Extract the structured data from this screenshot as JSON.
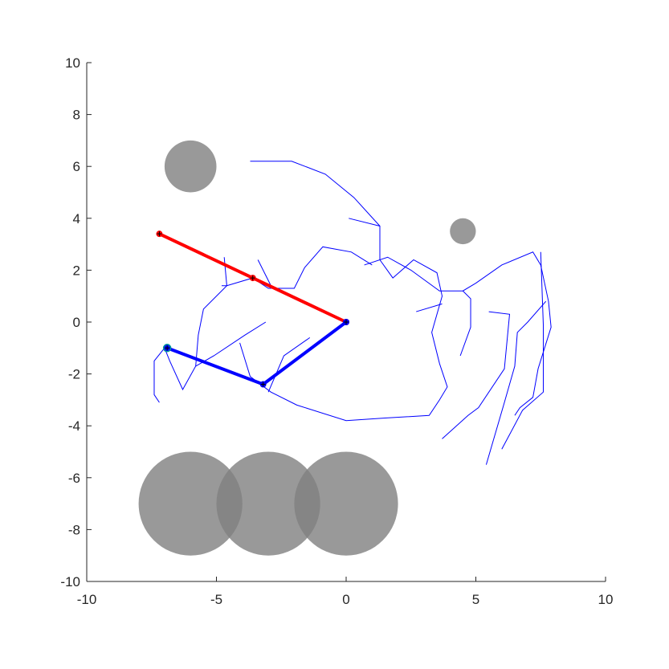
{
  "chart_data": {
    "type": "line",
    "title": "",
    "xlabel": "",
    "ylabel": "",
    "xlim": [
      -10,
      10
    ],
    "ylim": [
      -10,
      10
    ],
    "grid": false,
    "xticks": [
      -10,
      -5,
      0,
      5,
      10
    ],
    "yticks": [
      -10,
      -8,
      -6,
      -4,
      -2,
      0,
      2,
      4,
      6,
      8,
      10
    ],
    "xtick_labels": [
      "-10",
      "-5",
      "0",
      "5",
      "10"
    ],
    "ytick_labels": [
      "-10",
      "-8",
      "-6",
      "-4",
      "-2",
      "0",
      "2",
      "4",
      "6",
      "8",
      "10"
    ],
    "obstacles": [
      {
        "cx": -6,
        "cy": 6,
        "r": 1
      },
      {
        "cx": 4.5,
        "cy": 3.5,
        "r": 0.5
      },
      {
        "cx": -6,
        "cy": -7,
        "r": 2
      },
      {
        "cx": -3,
        "cy": -7,
        "r": 2
      },
      {
        "cx": 0,
        "cy": -7,
        "r": 2
      }
    ],
    "obstacle_color": "#7f7f7f",
    "arms": [
      {
        "color": "#ff0000",
        "joints": [
          [
            0,
            0
          ],
          [
            -3.6,
            1.7
          ],
          [
            -7.2,
            3.4
          ]
        ]
      },
      {
        "color": "#0000ff",
        "joints": [
          [
            0,
            0
          ],
          [
            -3.2,
            -2.4
          ],
          [
            -6.9,
            -1.0
          ]
        ]
      }
    ],
    "joint_marker_colors": {
      "red": "#ff0000",
      "blue": "#0000ff",
      "goal": "#009999"
    },
    "tree_color": "#0000ff",
    "tree_paths": [
      [
        [
          -3.7,
          6.2
        ],
        [
          -2.1,
          6.2
        ],
        [
          -0.8,
          5.7
        ],
        [
          0.3,
          4.8
        ],
        [
          1.3,
          3.7
        ],
        [
          1.3,
          2.4
        ],
        [
          1.8,
          1.7
        ],
        [
          2.6,
          2.4
        ],
        [
          3.5,
          1.9
        ],
        [
          3.7,
          1.0
        ],
        [
          3.3,
          -0.4
        ],
        [
          3.6,
          -1.6
        ],
        [
          3.9,
          -2.5
        ],
        [
          3.6,
          -3.0
        ],
        [
          3.2,
          -3.6
        ],
        [
          1.5,
          -3.7
        ],
        [
          0,
          -3.8
        ],
        [
          -1.9,
          -3.2
        ],
        [
          -2.9,
          -2.7
        ],
        [
          -3.7,
          -2.1
        ],
        [
          -4.1,
          -0.8
        ]
      ],
      [
        [
          0.1,
          4.0
        ],
        [
          1.3,
          3.7
        ]
      ],
      [
        [
          0.7,
          2.2
        ],
        [
          1.6,
          2.5
        ],
        [
          2.5,
          2.0
        ],
        [
          3.6,
          1.2
        ],
        [
          4.5,
          1.2
        ],
        [
          5.0,
          1.5
        ],
        [
          6.0,
          2.2
        ],
        [
          7.2,
          2.7
        ],
        [
          7.5,
          2.2
        ],
        [
          7.8,
          0.8
        ],
        [
          7.9,
          -0.2
        ],
        [
          7.4,
          -1.8
        ],
        [
          7.2,
          -2.9
        ],
        [
          6.7,
          -3.3
        ],
        [
          6.5,
          -3.6
        ]
      ],
      [
        [
          4.5,
          1.2
        ],
        [
          4.8,
          0.9
        ],
        [
          4.8,
          -0.2
        ],
        [
          4.4,
          -1.3
        ]
      ],
      [
        [
          2.7,
          0.4
        ],
        [
          3.7,
          0.7
        ]
      ],
      [
        [
          5.5,
          0.4
        ],
        [
          6.3,
          0.3
        ],
        [
          6.1,
          -1.8
        ],
        [
          5.1,
          -3.3
        ],
        [
          4.7,
          -3.6
        ],
        [
          3.7,
          -4.5
        ]
      ],
      [
        [
          7.5,
          2.7
        ],
        [
          7.6,
          -0.1
        ],
        [
          7.6,
          -2.7
        ],
        [
          6.8,
          -3.4
        ],
        [
          6.0,
          -4.9
        ]
      ],
      [
        [
          7.7,
          0.8
        ],
        [
          7.0,
          0.0
        ],
        [
          6.6,
          -0.4
        ],
        [
          6.5,
          -1.7
        ],
        [
          6.1,
          -3.1
        ],
        [
          5.4,
          -5.5
        ]
      ],
      [
        [
          -4.8,
          1.4
        ],
        [
          -4.6,
          1.4
        ],
        [
          -3.6,
          1.7
        ],
        [
          -3.0,
          1.3
        ],
        [
          -2.0,
          1.3
        ],
        [
          -1.6,
          2.1
        ],
        [
          -0.9,
          2.9
        ],
        [
          0.2,
          2.7
        ],
        [
          1.0,
          2.2
        ]
      ],
      [
        [
          -4.6,
          1.4
        ],
        [
          -4.7,
          2.5
        ]
      ],
      [
        [
          -3.4,
          2.4
        ],
        [
          -2.9,
          1.4
        ]
      ],
      [
        [
          -4.6,
          1.4
        ],
        [
          -5.5,
          0.5
        ],
        [
          -5.7,
          -0.5
        ],
        [
          -5.8,
          -1.7
        ],
        [
          -6.3,
          -2.6
        ],
        [
          -6.8,
          -1.5
        ],
        [
          -7.0,
          -1.0
        ]
      ],
      [
        [
          -5.8,
          -1.7
        ],
        [
          -5.1,
          -1.3
        ],
        [
          -3.9,
          -0.5
        ],
        [
          -3.1,
          0.0
        ]
      ],
      [
        [
          -7.0,
          -1.0
        ],
        [
          -7.4,
          -1.5
        ],
        [
          -7.4,
          -2.8
        ],
        [
          -7.2,
          -3.1
        ]
      ],
      [
        [
          -3.0,
          -2.7
        ],
        [
          -2.4,
          -1.3
        ],
        [
          -1.4,
          -0.6
        ]
      ]
    ]
  }
}
